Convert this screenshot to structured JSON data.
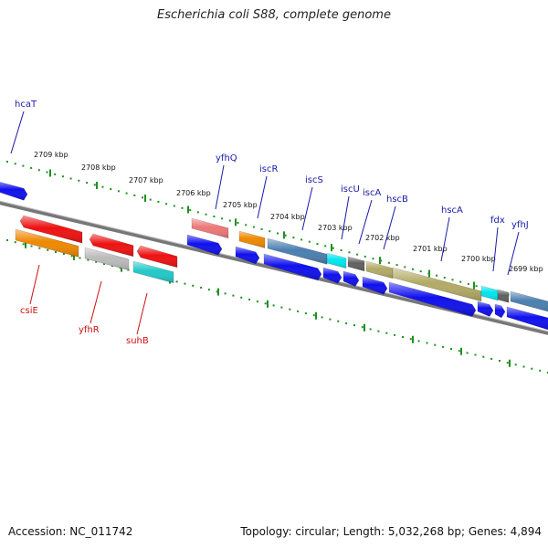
{
  "title": "Escherichia coli S88, complete genome",
  "footer": {
    "accession": "Accession: NC_011742",
    "topology": "Topology: circular; Length: 5,032,268 bp; Genes: 4,894"
  },
  "colors": {
    "forward_label": "#1a1aa8",
    "reverse_label": "#cc1111",
    "tick": "#1f8f1f",
    "backbone": "#777777",
    "forward_cds": "#1010ee"
  },
  "scale": {
    "labels": [
      "2709 kbp",
      "2708 kbp",
      "2707 kbp",
      "2706 kbp",
      "2705 kbp",
      "2704 kbp",
      "2703 kbp",
      "2702 kbp",
      "2701 kbp",
      "2700 kbp",
      "2699 kbp"
    ]
  },
  "forward_genes": [
    {
      "name": "hcaT",
      "color": "#1a1aa8"
    },
    {
      "name": "yfhQ",
      "color": "#1a1aa8"
    },
    {
      "name": "iscR",
      "color": "#1a1aa8"
    },
    {
      "name": "iscS",
      "color": "#1a1aa8"
    },
    {
      "name": "iscU",
      "color": "#1a1aa8"
    },
    {
      "name": "iscA",
      "color": "#1a1aa8"
    },
    {
      "name": "hscB",
      "color": "#1a1aa8"
    },
    {
      "name": "hscA",
      "color": "#1a1aa8"
    },
    {
      "name": "fdx",
      "color": "#1a1aa8"
    },
    {
      "name": "yfhJ",
      "color": "#1a1aa8"
    }
  ],
  "reverse_genes": [
    {
      "name": "csiE",
      "color": "#cc1111"
    },
    {
      "name": "yfhR",
      "color": "#cc1111"
    },
    {
      "name": "suhB",
      "color": "#cc1111"
    }
  ]
}
